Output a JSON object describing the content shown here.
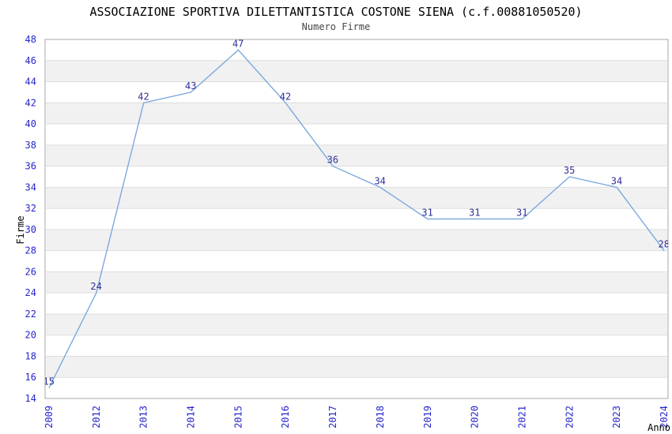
{
  "title": "ASSOCIAZIONE SPORTIVA DILETTANTISTICA COSTONE SIENA (c.f.00881050520)",
  "subtitle": "Numero Firme",
  "chart_data": {
    "type": "line",
    "categories": [
      "2009",
      "2012",
      "2013",
      "2014",
      "2015",
      "2016",
      "2017",
      "2018",
      "2019",
      "2020",
      "2021",
      "2022",
      "2023",
      "2024"
    ],
    "values": [
      15,
      24,
      42,
      43,
      47,
      42,
      36,
      34,
      31,
      31,
      31,
      35,
      34,
      28
    ],
    "point_labels": [
      "15",
      "24",
      "42",
      "43",
      "47",
      "42",
      "36",
      "34",
      "31",
      "31",
      "31",
      "35",
      "34",
      "28"
    ],
    "title": "ASSOCIAZIONE SPORTIVA DILETTANTISTICA COSTONE SIENA (c.f.00881050520)",
    "subtitle": "Numero Firme",
    "xlabel": "Anno",
    "ylabel": "Firme",
    "ylim": [
      14,
      48
    ],
    "ytick_step": 2,
    "grid": true,
    "banded_background": true,
    "legend": "none",
    "colors": {
      "line": "#7CA9DF",
      "point_label": "#30309A",
      "tick_label": "#2525CB",
      "band_gray": "#F1F1F1",
      "gridline": "#DDDDDD",
      "plot_border": "#AAAAAA",
      "axis_title": "#000000",
      "background": "#FFFFFF"
    }
  }
}
